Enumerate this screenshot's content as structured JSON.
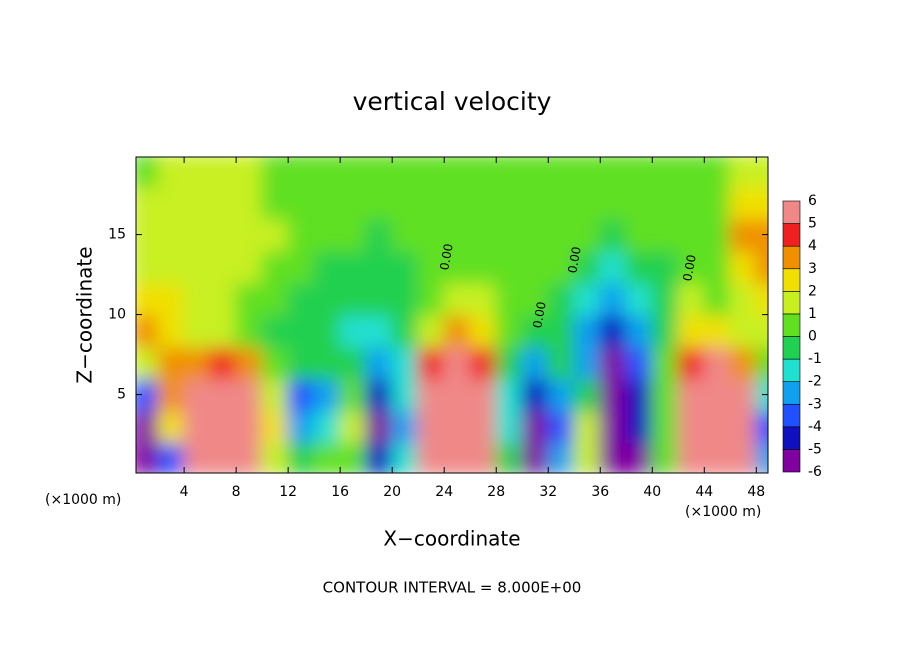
{
  "chart_data": {
    "type": "contour",
    "title": "vertical velocity",
    "x_label": "X−coordinate",
    "y_label": "Z−coordinate",
    "unit_label": "(×1000 m)",
    "footer": "CONTOUR INTERVAL = 8.000E+00",
    "annotations": [
      "0.00",
      "0.00",
      "0.00",
      "0.00"
    ],
    "xlim": [
      0.3,
      48.9
    ],
    "ylim": [
      0.1,
      19.85
    ],
    "xticks": [
      4,
      8,
      12,
      16,
      20,
      24,
      28,
      32,
      36,
      40,
      44,
      48
    ],
    "yticks": [
      5,
      10,
      15
    ],
    "x": [
      1,
      3,
      5,
      7,
      9,
      11,
      13,
      15,
      17,
      19,
      21,
      23,
      25,
      27,
      29,
      31,
      33,
      35,
      37,
      39,
      41,
      43,
      45,
      47,
      49
    ],
    "z": [
      1,
      3,
      5,
      7,
      9,
      11,
      13,
      15,
      17,
      19
    ],
    "values": [
      [
        -6,
        -6,
        -4,
        1,
        3,
        2,
        1,
        1,
        1,
        0.5
      ],
      [
        -4,
        2,
        3,
        3,
        2,
        2,
        1,
        1,
        1,
        1
      ],
      [
        6,
        6,
        6,
        3,
        1,
        1.5,
        1.5,
        1,
        1,
        1
      ],
      [
        6,
        6,
        6,
        4,
        1,
        1,
        1.5,
        1,
        1,
        1
      ],
      [
        6,
        6,
        5,
        3,
        0.5,
        0,
        1,
        1,
        1,
        1
      ],
      [
        1,
        2,
        1,
        0,
        -0.5,
        0,
        0.5,
        1,
        0.5,
        0.5
      ],
      [
        -1,
        -3,
        -4,
        -1,
        -0.5,
        -0.5,
        0,
        0.5,
        0,
        0.5
      ],
      [
        0,
        -2,
        -3,
        -1,
        -1,
        -1,
        -0.5,
        0,
        0,
        0
      ],
      [
        0,
        1,
        0,
        -1,
        -1.5,
        -1,
        -0.5,
        0,
        0,
        0
      ],
      [
        -5,
        -6,
        -5,
        -3,
        -1.5,
        -1,
        -1,
        -0.5,
        0,
        0
      ],
      [
        -2,
        -3,
        -2,
        -2,
        -1,
        -1,
        -0.5,
        0,
        0,
        0
      ],
      [
        6,
        6,
        6,
        4,
        1,
        0,
        0,
        0,
        0,
        0.5
      ],
      [
        6,
        6,
        6,
        5,
        3,
        1,
        0.5,
        0,
        0,
        0.5
      ],
      [
        6,
        5,
        5,
        4,
        2,
        1,
        0,
        0,
        0,
        0
      ],
      [
        -1,
        -2,
        -2,
        -0.5,
        0,
        0,
        0,
        0,
        0,
        0
      ],
      [
        -6,
        -6,
        -5,
        -3,
        -1,
        0,
        0,
        0,
        0,
        0
      ],
      [
        -3,
        -4,
        -3,
        -1,
        -1,
        -0.5,
        0,
        0,
        0,
        0
      ],
      [
        1,
        1,
        -1,
        -3,
        -3,
        -2,
        -1,
        0,
        0,
        0
      ],
      [
        -6,
        -6,
        -6,
        -6,
        -5,
        -3,
        -2,
        -1,
        0,
        0
      ],
      [
        -6,
        -5,
        -5,
        -4,
        -3,
        -2,
        -1,
        0,
        0,
        0
      ],
      [
        0,
        0,
        0,
        0,
        -1,
        -1,
        -0.5,
        0,
        0,
        0
      ],
      [
        5,
        6,
        6,
        4,
        2,
        1,
        0.5,
        0,
        0,
        0
      ],
      [
        6,
        6,
        6,
        5,
        2,
        0,
        0,
        0,
        0,
        0
      ],
      [
        5,
        5,
        5,
        3,
        1,
        1,
        2,
        3,
        2,
        1
      ],
      [
        -3,
        -4,
        -2,
        0,
        1,
        2,
        3,
        3,
        2,
        1
      ]
    ],
    "colorbar": {
      "ticks": [
        -6,
        -5,
        -4,
        -3,
        -2,
        -1,
        0,
        1,
        2,
        3,
        4,
        5,
        6
      ],
      "colors": [
        "#8000a0",
        "#1010c0",
        "#2050ff",
        "#10a0f0",
        "#20e0d0",
        "#20d050",
        "#60e020",
        "#c8f020",
        "#f0e000",
        "#f09000",
        "#f02020",
        "#f08888"
      ]
    }
  }
}
